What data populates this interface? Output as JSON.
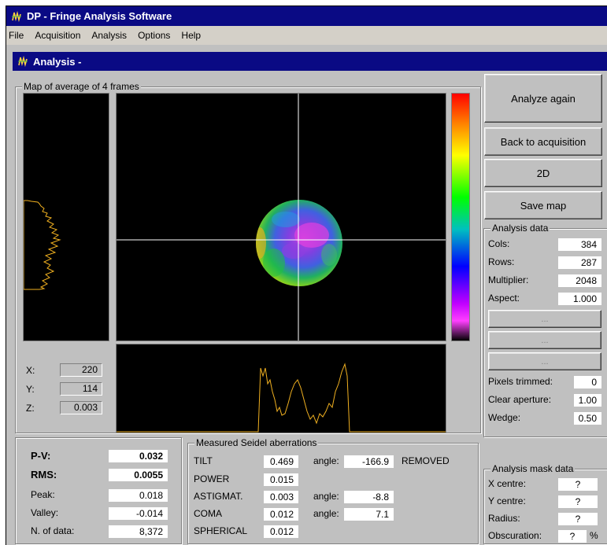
{
  "app": {
    "title": "DP - Fringe Analysis Software"
  },
  "menu": [
    "File",
    "Acquisition",
    "Analysis",
    "Options",
    "Help"
  ],
  "window": {
    "title": "Analysis -"
  },
  "map_group": {
    "label": "Map of average of 4 frames"
  },
  "cursor": {
    "x_label": "X:",
    "x": "220",
    "y_label": "Y:",
    "y": "114",
    "z_label": "Z:",
    "z": "0.003"
  },
  "buttons": {
    "analyze_again": "Analyze again",
    "back_to_acquisition": "Back to acquisition",
    "two_d": "2D",
    "save_map": "Save map",
    "ellipsis": "..."
  },
  "analysis_data": {
    "label": "Analysis data",
    "rows": [
      {
        "label": "Cols:",
        "value": "384"
      },
      {
        "label": "Rows:",
        "value": "287"
      },
      {
        "label": "Multiplier:",
        "value": "2048"
      },
      {
        "label": "Aspect:",
        "value": "1.000"
      }
    ],
    "pixels_trimmed_label": "Pixels trimmed:",
    "pixels_trimmed": "0",
    "clear_aperture_label": "Clear aperture:",
    "clear_aperture": "1.00",
    "wedge_label": "Wedge:",
    "wedge": "0.50"
  },
  "stats": {
    "pv_label": "P-V:",
    "pv": "0.032",
    "rms_label": "RMS:",
    "rms": "0.0055",
    "peak_label": "Peak:",
    "peak": "0.018",
    "valley_label": "Valley:",
    "valley": "-0.014",
    "ndata_label": "N. of data:",
    "ndata": "8,372"
  },
  "seidel": {
    "label": "Measured Seidel aberrations",
    "angle_label": "angle:",
    "tilt_label": "TILT",
    "tilt": "0.469",
    "tilt_angle": "-166.9",
    "tilt_status": "REMOVED",
    "power_label": "POWER",
    "power": "0.015",
    "astig_label": "ASTIGMAT.",
    "astig": "0.003",
    "astig_angle": "-8.8",
    "coma_label": "COMA",
    "coma": "0.012",
    "coma_angle": "7.1",
    "spherical_label": "SPHERICAL",
    "spherical": "0.012"
  },
  "mask_data": {
    "label": "Analysis mask data",
    "x_centre_label": "X centre:",
    "x_centre": "?",
    "y_centre_label": "Y centre:",
    "y_centre": "?",
    "radius_label": "Radius:",
    "radius": "?",
    "obscuration_label": "Obscuration:",
    "obscuration": "?",
    "obscuration_unit": "%"
  },
  "colors": {
    "title_bg": "#0a0a84",
    "trace": "#f0b020",
    "crosshair": "#ffffff"
  }
}
